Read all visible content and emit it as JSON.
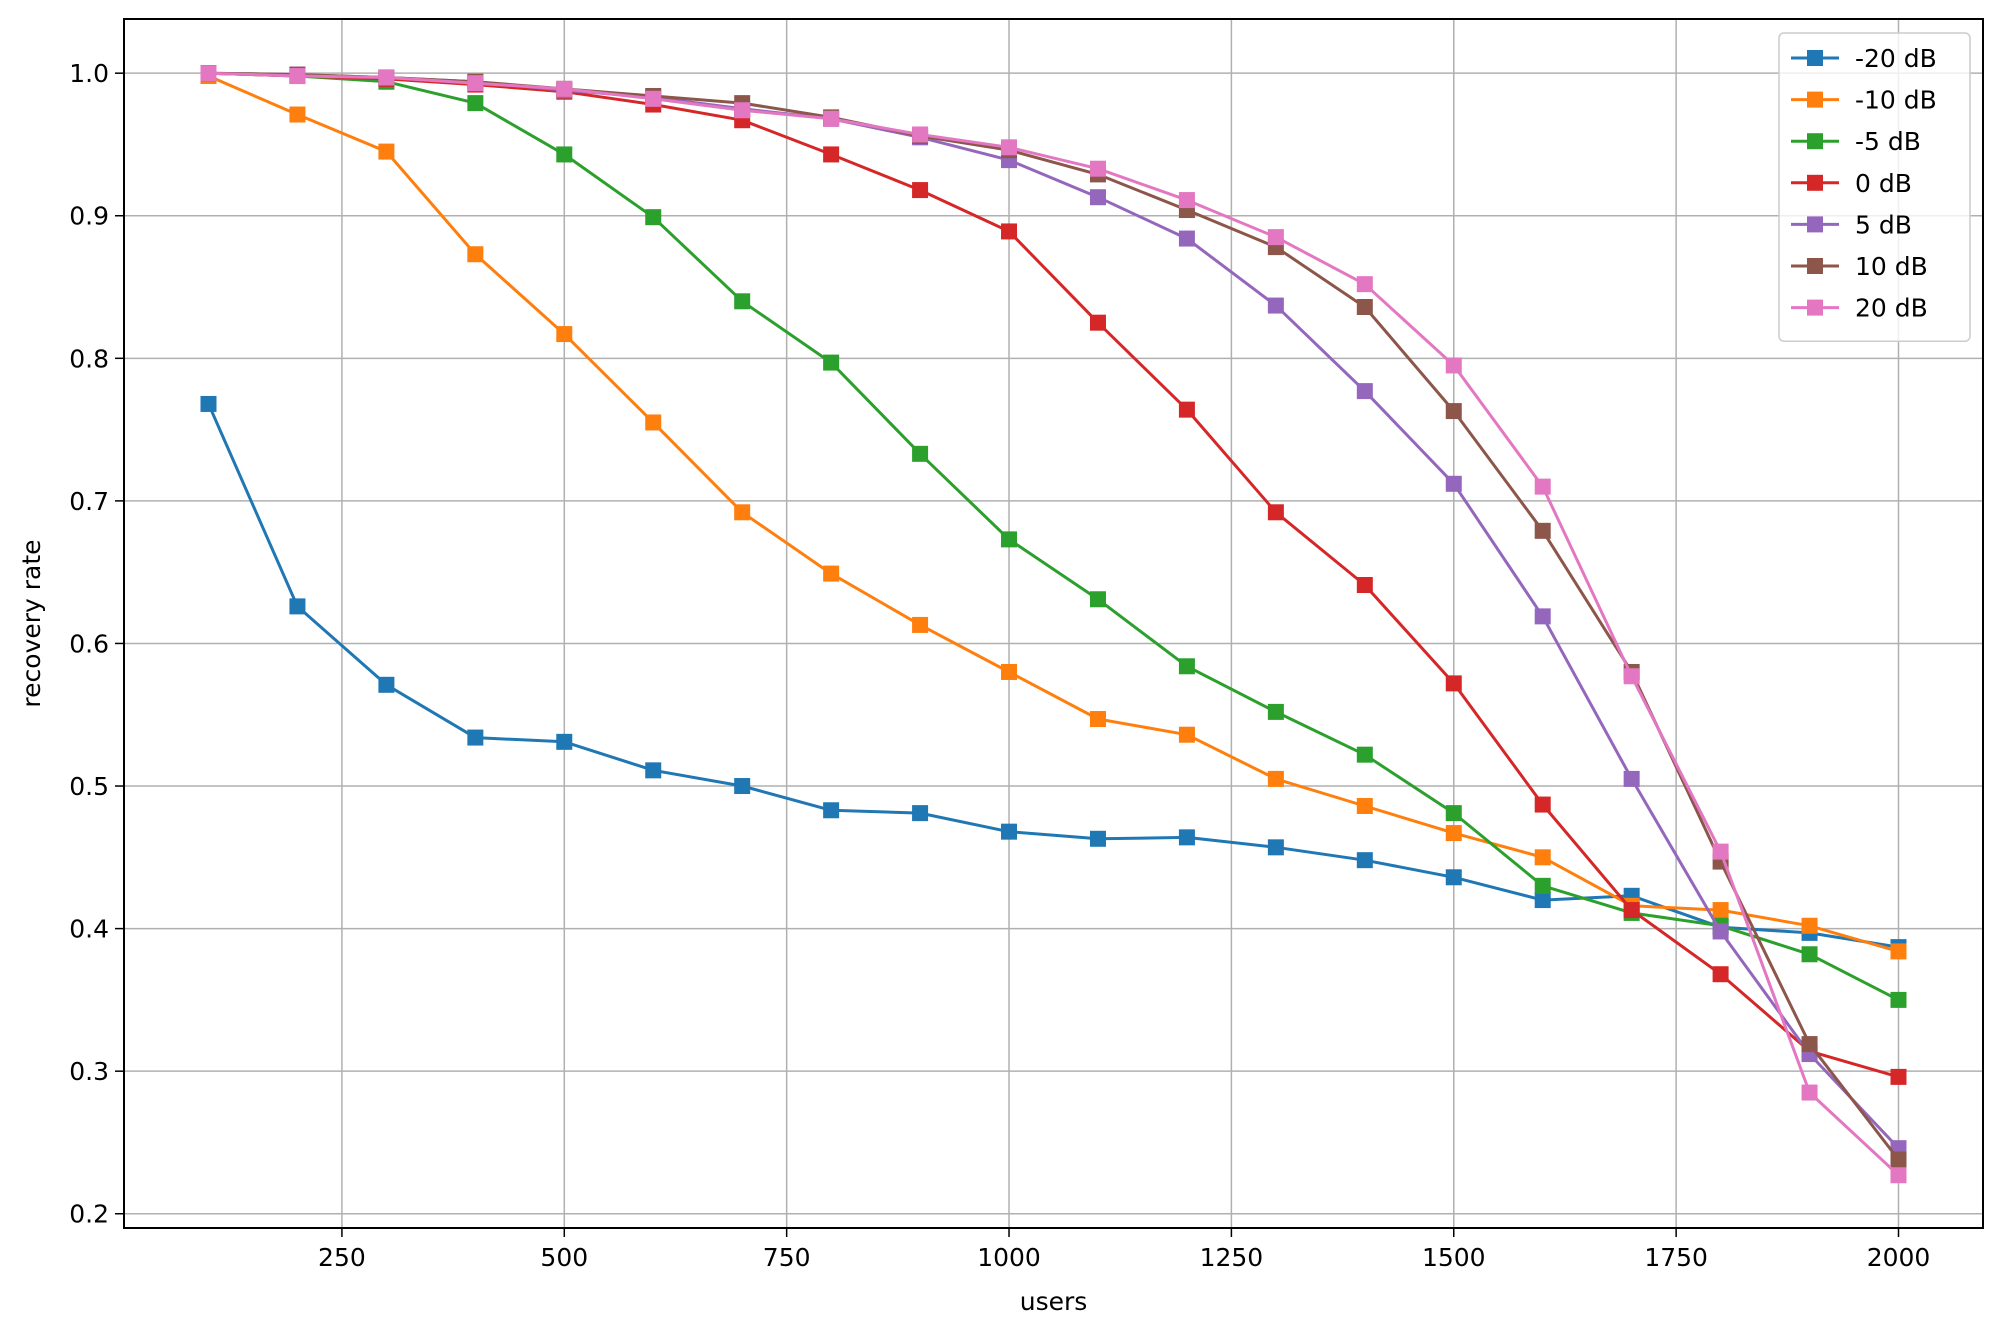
{
  "chart_data": {
    "type": "line",
    "xlabel": "users",
    "ylabel": "recovery rate",
    "xlim": [
      5,
      2095
    ],
    "ylim": [
      0.19,
      1.038
    ],
    "xticks": [
      250,
      500,
      750,
      1000,
      1250,
      1500,
      1750,
      2000
    ],
    "yticks": [
      0.2,
      0.3,
      0.4,
      0.5,
      0.6,
      0.7,
      0.8,
      0.9,
      1.0
    ],
    "xtick_labels": [
      "250",
      "500",
      "750",
      "1000",
      "1250",
      "1500",
      "1750",
      "2000"
    ],
    "ytick_labels": [
      "0.2",
      "0.3",
      "0.4",
      "0.5",
      "0.6",
      "0.7",
      "0.8",
      "0.9",
      "1.0"
    ],
    "grid": true,
    "legend_position": "top-right",
    "marker": "square",
    "x": [
      100,
      200,
      300,
      400,
      500,
      600,
      700,
      800,
      900,
      1000,
      1100,
      1200,
      1300,
      1400,
      1500,
      1600,
      1700,
      1800,
      1900,
      2000
    ],
    "series": [
      {
        "name": "-20 dB",
        "color": "#1f77b4",
        "values": [
          0.768,
          0.626,
          0.571,
          0.534,
          0.531,
          0.511,
          0.5,
          0.483,
          0.481,
          0.468,
          0.463,
          0.464,
          0.457,
          0.448,
          0.436,
          0.42,
          0.423,
          0.401,
          0.397,
          0.387
        ]
      },
      {
        "name": "-10 dB",
        "color": "#ff7f0e",
        "values": [
          0.998,
          0.971,
          0.945,
          0.873,
          0.817,
          0.755,
          0.692,
          0.649,
          0.613,
          0.58,
          0.547,
          0.536,
          0.505,
          0.486,
          0.467,
          0.45,
          0.416,
          0.413,
          0.402,
          0.384
        ]
      },
      {
        "name": "-5 dB",
        "color": "#2ca02c",
        "values": [
          1.0,
          0.998,
          0.994,
          0.979,
          0.943,
          0.899,
          0.84,
          0.797,
          0.733,
          0.673,
          0.631,
          0.584,
          0.552,
          0.522,
          0.481,
          0.43,
          0.411,
          0.402,
          0.382,
          0.35
        ]
      },
      {
        "name": "0 dB",
        "color": "#d62728",
        "values": [
          1.0,
          0.998,
          0.996,
          0.992,
          0.987,
          0.978,
          0.967,
          0.943,
          0.918,
          0.889,
          0.825,
          0.764,
          0.692,
          0.641,
          0.572,
          0.487,
          0.413,
          0.368,
          0.314,
          0.296
        ]
      },
      {
        "name": "5 dB",
        "color": "#9467bd",
        "values": [
          1.0,
          0.999,
          0.997,
          0.994,
          0.988,
          0.983,
          0.975,
          0.968,
          0.955,
          0.939,
          0.913,
          0.884,
          0.837,
          0.777,
          0.712,
          0.619,
          0.505,
          0.398,
          0.312,
          0.246
        ]
      },
      {
        "name": "10 dB",
        "color": "#8c564b",
        "values": [
          1.0,
          0.999,
          0.997,
          0.994,
          0.989,
          0.984,
          0.979,
          0.969,
          0.956,
          0.946,
          0.929,
          0.904,
          0.878,
          0.836,
          0.763,
          0.679,
          0.58,
          0.447,
          0.319,
          0.238
        ]
      },
      {
        "name": "20 dB",
        "color": "#e377c2",
        "values": [
          1.0,
          0.998,
          0.997,
          0.993,
          0.989,
          0.982,
          0.974,
          0.968,
          0.957,
          0.948,
          0.933,
          0.911,
          0.885,
          0.852,
          0.795,
          0.71,
          0.577,
          0.454,
          0.285,
          0.227
        ]
      }
    ]
  }
}
